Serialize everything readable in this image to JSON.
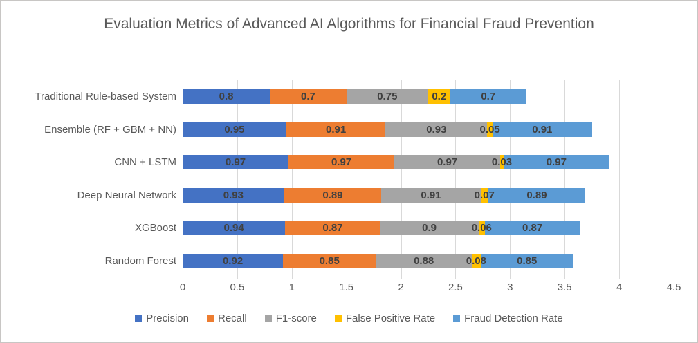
{
  "title": "Evaluation Metrics of Advanced AI Algorithms for Financial Fraud Prevention",
  "chart_data": {
    "type": "bar",
    "orientation": "horizontal-stacked",
    "title": "Evaluation Metrics of Advanced AI Algorithms for Financial Fraud Prevention",
    "categories": [
      "Traditional Rule-based System",
      "Ensemble (RF + GBM + NN)",
      "CNN + LSTM",
      "Deep Neural Network",
      "XGBoost",
      "Random Forest"
    ],
    "series": [
      {
        "name": "Precision",
        "color": "#4472C4",
        "values": [
          0.8,
          0.95,
          0.97,
          0.93,
          0.94,
          0.92
        ]
      },
      {
        "name": "Recall",
        "color": "#ED7D31",
        "values": [
          0.7,
          0.91,
          0.97,
          0.89,
          0.87,
          0.85
        ]
      },
      {
        "name": "F1-score",
        "color": "#A5A5A5",
        "values": [
          0.75,
          0.93,
          0.97,
          0.91,
          0.9,
          0.88
        ]
      },
      {
        "name": "False Positive Rate",
        "color": "#FFC000",
        "values": [
          0.2,
          0.05,
          0.03,
          0.07,
          0.06,
          0.08
        ]
      },
      {
        "name": "Fraud Detection Rate",
        "color": "#5B9BD5",
        "values": [
          0.7,
          0.91,
          0.97,
          0.89,
          0.87,
          0.85
        ]
      }
    ],
    "x_ticks": [
      "0",
      "0.5",
      "1",
      "1.5",
      "2",
      "2.5",
      "3",
      "3.5",
      "4",
      "4.5"
    ],
    "xlim": [
      0,
      4.5
    ],
    "grid": true,
    "legend_position": "bottom",
    "gridline_color": "#D9D9D9",
    "text_color": "#595959",
    "data_label_color": "#404040"
  }
}
